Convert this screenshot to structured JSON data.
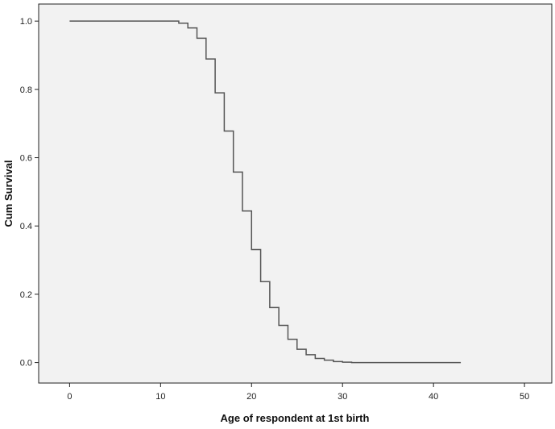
{
  "chart_data": {
    "type": "line",
    "step": true,
    "xlabel": "Age of respondent at 1st birth",
    "ylabel": "Cum Survival",
    "xlim": [
      -3.4,
      53
    ],
    "ylim": [
      -0.06,
      1.05
    ],
    "xticks": [
      0,
      10,
      20,
      30,
      40,
      50
    ],
    "yticks": [
      0.0,
      0.2,
      0.4,
      0.6,
      0.8,
      1.0
    ],
    "ytick_labels": [
      "0.0",
      "0.2",
      "0.4",
      "0.6",
      "0.8",
      "1.0"
    ],
    "grid": false,
    "background": "#f2f2f2",
    "line_color": "#555555",
    "series": [
      {
        "x": [
          0,
          12,
          13,
          14,
          15,
          16,
          17,
          18,
          19,
          20,
          21,
          22,
          23,
          24,
          25,
          26,
          27,
          28,
          29,
          30,
          31,
          43
        ],
        "y": [
          1.0,
          0.994,
          0.98,
          0.95,
          0.889,
          0.79,
          0.678,
          0.558,
          0.444,
          0.331,
          0.237,
          0.161,
          0.109,
          0.068,
          0.039,
          0.023,
          0.012,
          0.007,
          0.003,
          0.001,
          0.0,
          0.0
        ]
      }
    ]
  }
}
